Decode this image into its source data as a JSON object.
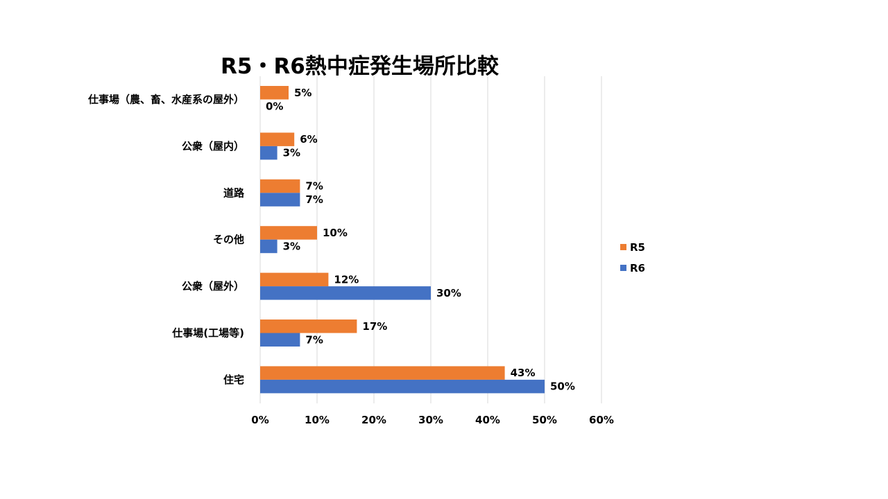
{
  "chart_data": {
    "type": "bar",
    "orientation": "horizontal",
    "title": "R5・R6熱中症発生場所比較",
    "categories": [
      "仕事場（農、畜、水産系の屋外）",
      "公衆（屋内）",
      "道路",
      "その他",
      "公衆（屋外）",
      "仕事場(工場等)",
      "住宅"
    ],
    "series": [
      {
        "name": "R5",
        "color": "#ED7D31",
        "values": [
          5,
          6,
          7,
          10,
          12,
          17,
          43
        ],
        "labels": [
          "5%",
          "6%",
          "7%",
          "10%",
          "12%",
          "17%",
          "43%"
        ]
      },
      {
        "name": "R6",
        "color": "#4472C4",
        "values": [
          0,
          3,
          7,
          3,
          30,
          7,
          50
        ],
        "labels": [
          "0%",
          "3%",
          "7%",
          "3%",
          "30%",
          "7%",
          "50%"
        ]
      }
    ],
    "xlim": [
      0,
      60
    ],
    "xticks": [
      0,
      10,
      20,
      30,
      40,
      50,
      60
    ],
    "xtick_labels": [
      "0%",
      "10%",
      "20%",
      "30%",
      "40%",
      "50%",
      "60%"
    ],
    "grid": "vertical",
    "legend_position": "right",
    "gridline_color": "#D9D9D9"
  }
}
